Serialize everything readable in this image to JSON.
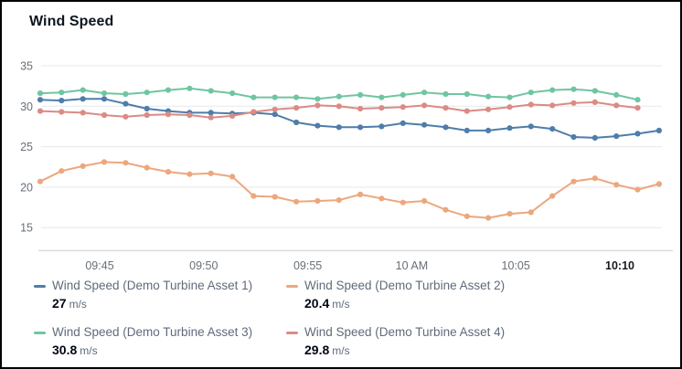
{
  "title": "Wind Speed",
  "unit": "m/s",
  "colors": {
    "asset1": "#4e7daa",
    "asset2": "#eca77f",
    "asset3": "#70c5a1",
    "asset4": "#db8b84",
    "gridline": "#e6e9ec",
    "axis_line": "#d5dbdb",
    "tick_label": "#687078",
    "tick_label_bold": "#16191f"
  },
  "chart_data": {
    "type": "line",
    "title": "Wind Speed",
    "ylabel": "",
    "xlabel": "",
    "ylim": [
      12.2,
      36.2
    ],
    "y_ticks": [
      35,
      30,
      25,
      20,
      15
    ],
    "x_ticks": [
      "09:45",
      "09:50",
      "09:55",
      "10 AM",
      "10:05",
      "10:10"
    ],
    "grid": true,
    "legend_position": "bottom",
    "series": [
      {
        "name": "Wind Speed (Demo Turbine Asset 1)",
        "color": "#4e7daa",
        "latest_value": "27",
        "unit": "m/s",
        "values": [
          30.8,
          30.7,
          30.9,
          30.9,
          30.3,
          29.7,
          29.4,
          29.2,
          29.2,
          29.1,
          29.2,
          29.0,
          28.0,
          27.6,
          27.4,
          27.4,
          27.5,
          27.9,
          27.7,
          27.4,
          27.0,
          27.0,
          27.3,
          27.5,
          27.2,
          26.2,
          26.1,
          26.3,
          26.6,
          27.0
        ]
      },
      {
        "name": "Wind Speed (Demo Turbine Asset 2)",
        "color": "#eca77f",
        "latest_value": "20.4",
        "unit": "m/s",
        "values": [
          20.7,
          22.0,
          22.6,
          23.1,
          23.0,
          22.4,
          21.9,
          21.6,
          21.7,
          21.3,
          18.9,
          18.8,
          18.2,
          18.3,
          18.4,
          19.1,
          18.6,
          18.1,
          18.3,
          17.2,
          16.4,
          16.2,
          16.7,
          16.9,
          18.9,
          20.7,
          21.1,
          20.3,
          19.7,
          20.4
        ]
      },
      {
        "name": "Wind Speed (Demo Turbine Asset 3)",
        "color": "#70c5a1",
        "latest_value": "30.8",
        "unit": "m/s",
        "values": [
          31.6,
          31.7,
          32.0,
          31.6,
          31.5,
          31.7,
          32.0,
          32.2,
          31.9,
          31.6,
          31.1,
          31.1,
          31.1,
          30.9,
          31.2,
          31.4,
          31.1,
          31.4,
          31.7,
          31.5,
          31.5,
          31.2,
          31.1,
          31.7,
          32.0,
          32.1,
          31.9,
          31.4,
          30.8
        ]
      },
      {
        "name": "Wind Speed (Demo Turbine Asset 4)",
        "color": "#db8b84",
        "latest_value": "29.8",
        "unit": "m/s",
        "values": [
          29.4,
          29.3,
          29.2,
          28.9,
          28.7,
          28.9,
          29.0,
          28.9,
          28.6,
          28.8,
          29.3,
          29.6,
          29.8,
          30.1,
          30.0,
          29.7,
          29.8,
          29.9,
          30.1,
          29.8,
          29.4,
          29.6,
          29.9,
          30.2,
          30.1,
          30.4,
          30.5,
          30.1,
          29.8
        ]
      }
    ],
    "legend_order": [
      0,
      1,
      2,
      3
    ]
  }
}
